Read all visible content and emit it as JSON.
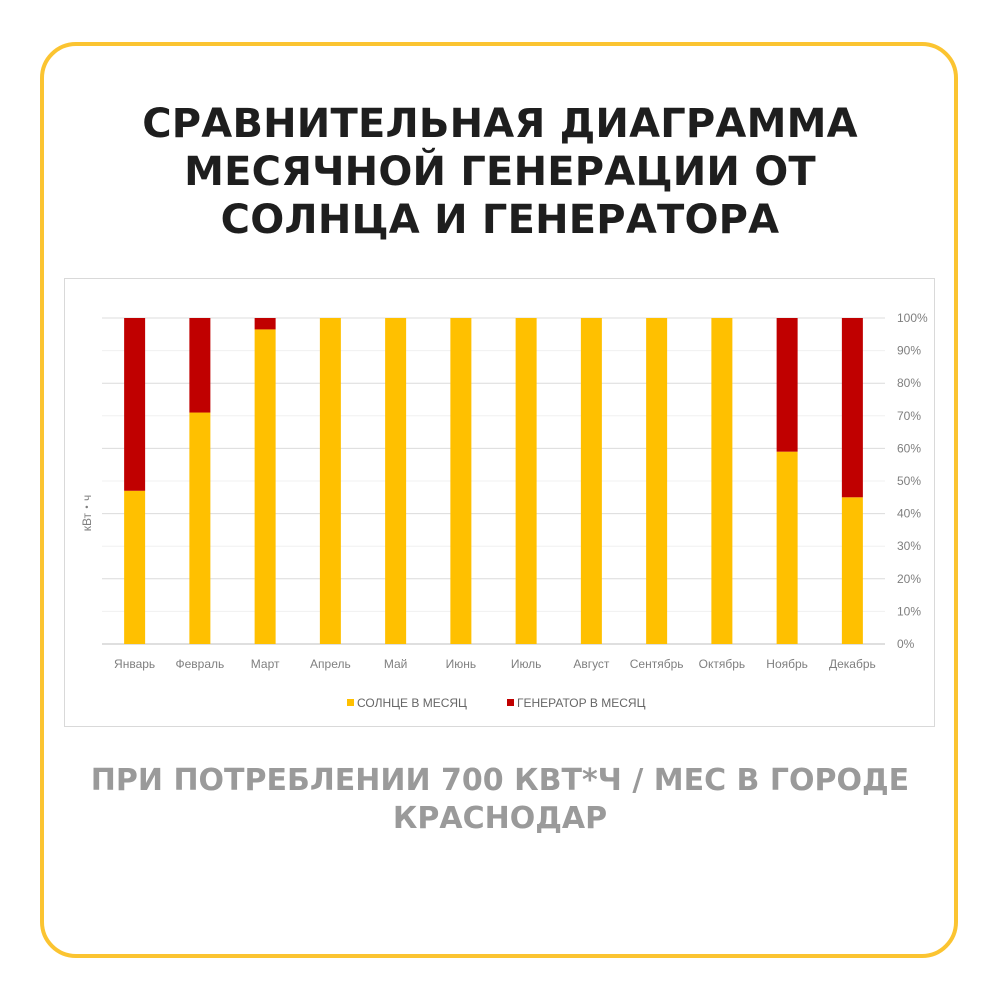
{
  "title_lines": [
    "СРАВНИТЕЛЬНАЯ ДИАГРАММА",
    "МЕСЯЧНОЙ ГЕНЕРАЦИИ ОТ",
    "СОЛНЦА И ГЕНЕРАТОРА"
  ],
  "subtitle_lines": [
    "ПРИ ПОТРЕБЛЕНИИ 700 КВТ*Ч / МЕС В ГОРОДЕ",
    "КРАСНОДАР"
  ],
  "colors": {
    "border": "#fbc431",
    "sun": "#ffc000",
    "generator": "#c00000",
    "grid": "#e6e6e6"
  },
  "chart_data": {
    "type": "bar",
    "stacked": "percent",
    "categories": [
      "Январь",
      "Февраль",
      "Март",
      "Апрель",
      "Май",
      "Июнь",
      "Июль",
      "Август",
      "Сентябрь",
      "Октябрь",
      "Ноябрь",
      "Декабрь"
    ],
    "series": [
      {
        "name": "СОЛНЦЕ В МЕСЯЦ",
        "color": "#ffc000",
        "values": [
          47,
          71,
          96.5,
          100,
          100,
          100,
          100,
          100,
          100,
          100,
          59,
          45
        ]
      },
      {
        "name": "ГЕНЕРАТОР В МЕСЯЦ",
        "color": "#c00000",
        "values": [
          53,
          29,
          3.5,
          0,
          0,
          0,
          0,
          0,
          0,
          0,
          41,
          55
        ]
      }
    ],
    "ylabel": "кВт・ч",
    "yticks": [
      "0%",
      "10%",
      "20%",
      "30%",
      "40%",
      "50%",
      "60%",
      "70%",
      "80%",
      "90%",
      "100%"
    ],
    "ylim": [
      0,
      100
    ],
    "y_axis_side": "right",
    "legend_position": "bottom",
    "grid": true
  }
}
